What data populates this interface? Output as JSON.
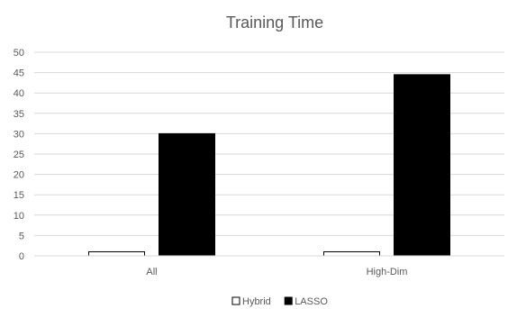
{
  "chart_data": {
    "type": "bar",
    "title": "Training Time",
    "xlabel": "",
    "ylabel": "",
    "categories": [
      "All",
      "High-Dim"
    ],
    "series": [
      {
        "name": "Hybrid",
        "values": [
          1,
          1
        ],
        "color": "#ffffff",
        "stroke": "#000000"
      },
      {
        "name": "LASSO",
        "values": [
          30,
          44.5
        ],
        "color": "#000000",
        "stroke": "#000000"
      }
    ],
    "ylim": [
      0,
      50
    ],
    "yticks": [
      0,
      5,
      10,
      15,
      20,
      25,
      30,
      35,
      40,
      45,
      50
    ],
    "grid": true,
    "legend": "bottom"
  }
}
